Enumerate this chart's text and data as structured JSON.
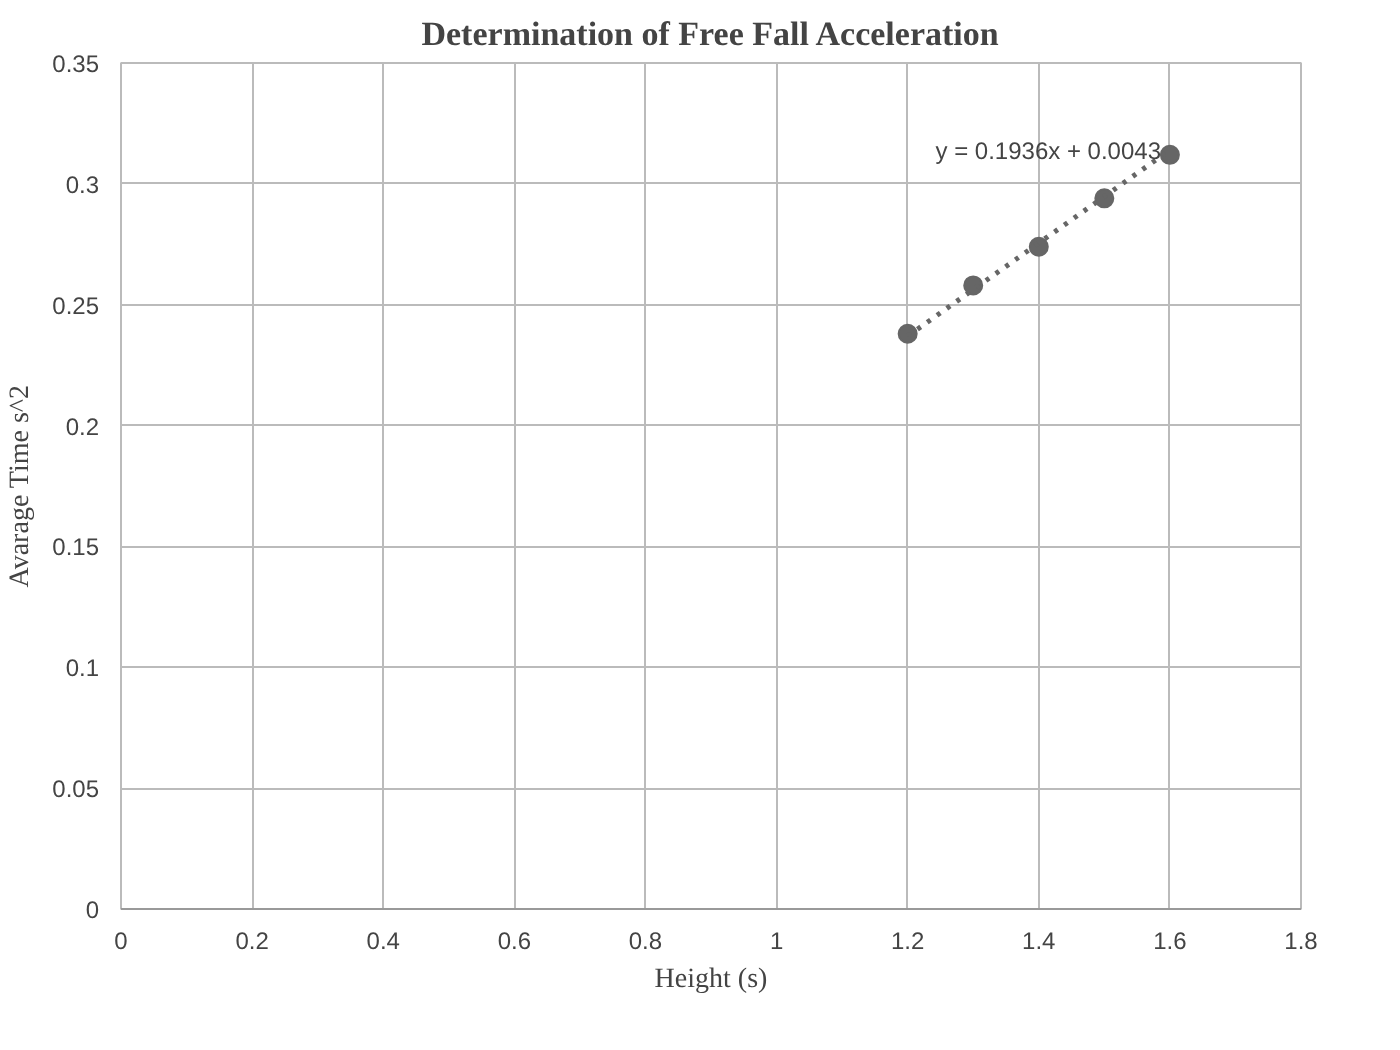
{
  "chart_data": {
    "type": "scatter",
    "title": "Determination of Free Fall Acceleration",
    "xlabel": "Height (s)",
    "ylabel": "Avarage Time s^2",
    "x": [
      1.2,
      1.3,
      1.4,
      1.5,
      1.6
    ],
    "series": [
      {
        "color": "#666666",
        "values": [
          0.238,
          0.258,
          0.274,
          0.294,
          0.312
        ],
        "marker": "circle"
      },
      {
        "type": "line",
        "color": "#666666",
        "x": [
          1.2,
          1.6
        ],
        "values": [
          0.237,
          0.314
        ],
        "line_style": "dotted",
        "marker": "none"
      }
    ],
    "annotations": [
      "y = 0.1936x + 0.0043"
    ],
    "xlim": [
      0,
      1.8
    ],
    "xticks": [
      0,
      0.2,
      0.4,
      0.6,
      0.8,
      1,
      1.2,
      1.4,
      1.6,
      1.8
    ],
    "ylim": [
      0,
      0.35
    ],
    "yticks": [
      0,
      0.05,
      0.1,
      0.15,
      0.2,
      0.25,
      0.3,
      0.35
    ],
    "grid": true
  }
}
